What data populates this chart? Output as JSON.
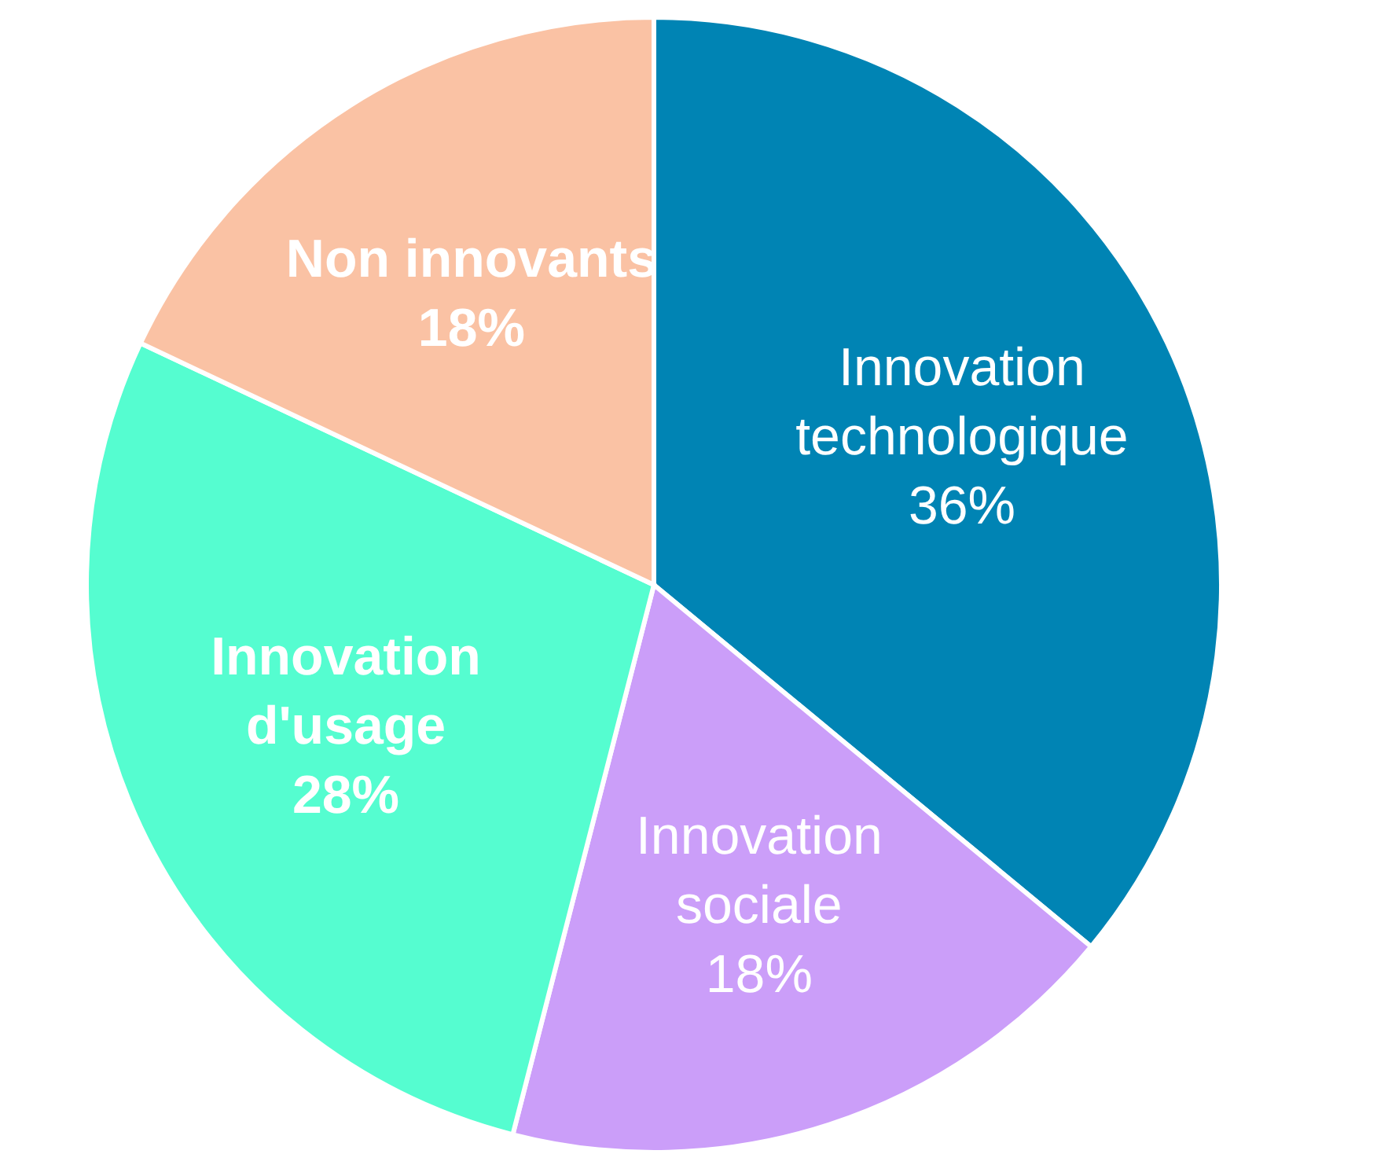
{
  "chart_data": {
    "type": "pie",
    "categories": [
      "Innovation technologique",
      "Innovation sociale",
      "Innovation d'usage",
      "Non innovants"
    ],
    "values": [
      36,
      18,
      28,
      18
    ],
    "value_labels": [
      "36%",
      "18%",
      "28%",
      "18%"
    ],
    "colors": [
      "#0084b4",
      "#cb9ef9",
      "#55fdd0",
      "#fac2a4"
    ]
  }
}
